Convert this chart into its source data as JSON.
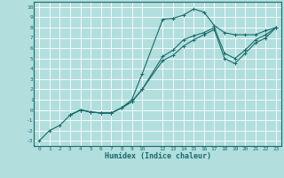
{
  "xlabel": "Humidex (Indice chaleur)",
  "bg_color": "#b2dede",
  "grid_color": "#cceeee",
  "line_color": "#1a6b6b",
  "xlim": [
    -0.5,
    23.5
  ],
  "ylim": [
    -3.5,
    10.5
  ],
  "xticks": [
    0,
    1,
    2,
    3,
    4,
    5,
    6,
    7,
    8,
    9,
    10,
    12,
    13,
    14,
    15,
    16,
    17,
    18,
    19,
    20,
    21,
    22,
    23
  ],
  "yticks": [
    -3,
    -2,
    -1,
    0,
    1,
    2,
    3,
    4,
    5,
    6,
    7,
    8,
    9,
    10
  ],
  "line1_x": [
    0,
    1,
    2,
    3,
    4,
    5,
    6,
    7,
    8,
    9,
    10,
    12,
    13,
    14,
    15,
    16,
    17,
    18,
    19,
    20,
    21,
    22,
    23
  ],
  "line1_y": [
    -3,
    -2,
    -1.5,
    -0.5,
    0.0,
    -0.2,
    -0.3,
    -0.3,
    0.2,
    1.0,
    3.5,
    8.8,
    8.9,
    9.2,
    9.8,
    9.5,
    8.2,
    7.5,
    7.3,
    7.3,
    7.3,
    7.7,
    8.0
  ],
  "line2_x": [
    3,
    4,
    5,
    6,
    7,
    8,
    9,
    10,
    12,
    13,
    14,
    15,
    16,
    17,
    18,
    19,
    20,
    21,
    22,
    23
  ],
  "line2_y": [
    -0.5,
    0.0,
    -0.2,
    -0.3,
    -0.3,
    0.2,
    0.8,
    2.0,
    5.2,
    5.8,
    6.8,
    7.2,
    7.5,
    8.0,
    5.5,
    5.0,
    5.8,
    6.8,
    7.3,
    8.0
  ],
  "line3_x": [
    3,
    4,
    5,
    6,
    7,
    8,
    9,
    10,
    12,
    13,
    14,
    15,
    16,
    17,
    18,
    19,
    20,
    21,
    22,
    23
  ],
  "line3_y": [
    -0.5,
    0.0,
    -0.2,
    -0.3,
    -0.3,
    0.2,
    0.8,
    2.0,
    4.8,
    5.3,
    6.2,
    6.8,
    7.3,
    7.8,
    5.0,
    4.5,
    5.5,
    6.5,
    7.0,
    8.0
  ]
}
